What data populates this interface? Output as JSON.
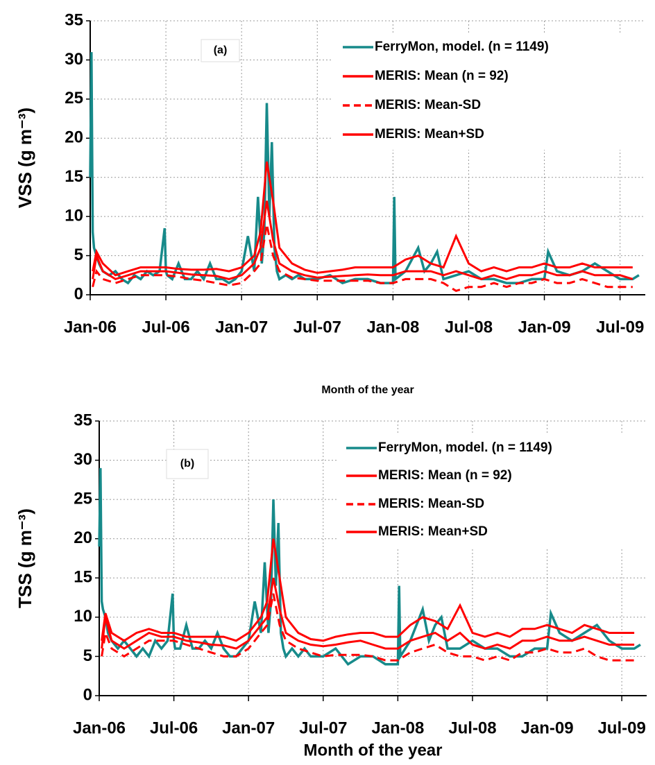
{
  "chart_data": [
    {
      "type": "line",
      "panel_label": "(a)",
      "ylabel": "VSS (g m⁻³)",
      "xlabel": "Month of the year",
      "xlim": [
        0,
        44
      ],
      "ylim": [
        0,
        35
      ],
      "yticks": [
        0,
        5,
        10,
        15,
        20,
        25,
        30,
        35
      ],
      "xticks": [
        {
          "value": 0,
          "label": "Jan-06"
        },
        {
          "value": 6,
          "label": "Jul-06"
        },
        {
          "value": 12,
          "label": "Jan-07"
        },
        {
          "value": 18,
          "label": "Jul-07"
        },
        {
          "value": 24,
          "label": "Jan-08"
        },
        {
          "value": 30,
          "label": "Jul-08"
        },
        {
          "value": 36,
          "label": "Jan-09"
        },
        {
          "value": 42,
          "label": "Jul-09"
        }
      ],
      "grid": true,
      "legend": "upper right",
      "series": [
        {
          "name": "FerryMon, model. (n = 1149)",
          "color": "#178a8a",
          "linestyle": "solid",
          "x": [
            0,
            0.1,
            0.2,
            0.3,
            0.5,
            0.7,
            1,
            1.5,
            2,
            2.5,
            3,
            3.5,
            4,
            4.5,
            5,
            5.5,
            5.9,
            6,
            6.1,
            6.5,
            7,
            7.5,
            8,
            8.5,
            9,
            9.5,
            10,
            10.5,
            11,
            11.5,
            12,
            12.5,
            13,
            13.3,
            13.6,
            13.8,
            14,
            14.2,
            14.4,
            14.6,
            14.8,
            15,
            15.5,
            16,
            16.5,
            17,
            18,
            19,
            20,
            21,
            22,
            23,
            24,
            24.1,
            24.2,
            25,
            26,
            26.5,
            27,
            27.5,
            28,
            29,
            30,
            31,
            32,
            33,
            34,
            35,
            36,
            36.3,
            37,
            38,
            39,
            40,
            41,
            42,
            43,
            43.5
          ],
          "values": [
            15,
            31,
            8,
            6,
            5,
            4,
            3,
            2.5,
            3,
            2,
            1.5,
            2.5,
            2,
            3,
            2.5,
            3,
            8.5,
            3,
            2.5,
            2,
            4,
            2,
            2,
            3,
            2,
            4,
            2,
            2,
            1.5,
            2,
            3,
            7.5,
            3,
            12.5,
            4,
            8,
            24.5,
            10,
            19.5,
            6,
            3,
            2,
            2.5,
            2,
            2.5,
            2,
            2,
            2.5,
            1.5,
            2,
            2,
            1.5,
            1.5,
            12.5,
            2,
            3,
            6,
            3,
            4,
            5.5,
            2,
            2.5,
            3,
            2,
            2,
            1.5,
            1.5,
            2,
            2,
            5.5,
            3,
            2.5,
            3,
            4,
            3,
            2,
            2,
            2.5
          ]
        },
        {
          "name": "MERIS: Mean (n = 92)",
          "color": "#ff0000",
          "linestyle": "solid",
          "x": [
            0.2,
            0.5,
            1,
            2,
            3,
            4,
            5,
            6,
            7,
            8,
            9,
            10,
            11,
            12,
            13,
            13.5,
            14,
            14.5,
            15,
            16,
            17,
            18,
            19,
            20,
            21,
            22,
            23,
            24,
            25,
            26,
            27,
            28,
            29,
            30,
            31,
            32,
            33,
            34,
            35,
            36,
            37,
            38,
            39,
            40,
            41,
            42,
            43
          ],
          "values": [
            2,
            5,
            3,
            2,
            2.5,
            3,
            3,
            3,
            2.8,
            2.6,
            2.5,
            2.4,
            2,
            2.5,
            4,
            6,
            12,
            7,
            4,
            3,
            2.5,
            2.2,
            2.3,
            2.4,
            2.5,
            2.6,
            2.5,
            2.5,
            3,
            3,
            3,
            2.5,
            3,
            2.5,
            2,
            2.5,
            2,
            2.5,
            2.5,
            3,
            2.5,
            2.5,
            3,
            2.5,
            2.5,
            2.5,
            2
          ]
        },
        {
          "name": "MERIS: Mean-SD",
          "color": "#ff0000",
          "linestyle": "dashed",
          "x": [
            0.2,
            0.5,
            1,
            2,
            3,
            4,
            5,
            6,
            7,
            8,
            9,
            10,
            11,
            12,
            13,
            13.5,
            14,
            14.5,
            15,
            16,
            17,
            18,
            19,
            20,
            21,
            22,
            23,
            24,
            25,
            26,
            27,
            28,
            29,
            30,
            31,
            32,
            33,
            34,
            35,
            36,
            37,
            38,
            39,
            40,
            41,
            42,
            43
          ],
          "values": [
            1,
            3,
            2,
            1.5,
            2,
            2.5,
            2.5,
            2.5,
            2.3,
            2,
            1.8,
            1.5,
            1.2,
            1.5,
            3,
            4,
            9,
            5,
            3,
            2.2,
            2,
            1.8,
            1.8,
            1.8,
            1.8,
            1.8,
            1.5,
            1.5,
            2,
            2,
            2,
            1.5,
            0.5,
            1,
            1,
            1.5,
            1,
            1.5,
            1.5,
            2,
            1.5,
            1.5,
            2,
            1.5,
            1,
            1,
            1
          ]
        },
        {
          "name": "MERIS: Mean+SD",
          "color": "#ff0000",
          "linestyle": "solid",
          "x": [
            0.2,
            0.5,
            1,
            2,
            3,
            4,
            5,
            6,
            7,
            8,
            9,
            10,
            11,
            12,
            13,
            13.5,
            14,
            14.5,
            15,
            16,
            17,
            18,
            19,
            20,
            21,
            22,
            23,
            24,
            25,
            26,
            27,
            28,
            29,
            30,
            31,
            32,
            33,
            34,
            35,
            36,
            37,
            38,
            39,
            40,
            41,
            42,
            43
          ],
          "values": [
            3,
            5.5,
            4,
            2.5,
            3,
            3.5,
            3.5,
            3.5,
            3.3,
            3.2,
            3.2,
            3.3,
            3,
            3.5,
            5,
            8,
            17,
            12,
            6,
            4,
            3.2,
            2.8,
            3,
            3.2,
            3.5,
            3.5,
            3.5,
            3.5,
            4.5,
            5,
            4,
            3.5,
            7.5,
            4,
            3,
            3.5,
            3,
            3.5,
            3.5,
            4,
            3.5,
            3.5,
            4,
            3.5,
            3.5,
            3.5,
            3.5
          ]
        }
      ]
    },
    {
      "type": "line",
      "panel_label": "(b)",
      "ylabel": "TSS (g m⁻³)",
      "xlabel": "Month of the year",
      "xlim": [
        0,
        44
      ],
      "ylim": [
        0,
        35
      ],
      "yticks": [
        0,
        5,
        10,
        15,
        20,
        25,
        30,
        35
      ],
      "xticks": [
        {
          "value": 0,
          "label": "Jan-06"
        },
        {
          "value": 6,
          "label": "Jul-06"
        },
        {
          "value": 12,
          "label": "Jan-07"
        },
        {
          "value": 18,
          "label": "Jul-07"
        },
        {
          "value": 24,
          "label": "Jan-08"
        },
        {
          "value": 30,
          "label": "Jul-08"
        },
        {
          "value": 36,
          "label": "Jan-09"
        },
        {
          "value": 42,
          "label": "Jul-09"
        }
      ],
      "grid": true,
      "legend": "upper right",
      "series": [
        {
          "name": "FerryMon, model. (n = 1149)",
          "color": "#178a8a",
          "linestyle": "solid",
          "x": [
            0,
            0.1,
            0.2,
            0.3,
            0.5,
            0.7,
            1,
            1.5,
            2,
            2.5,
            3,
            3.5,
            4,
            4.5,
            5,
            5.5,
            5.9,
            6,
            6.1,
            6.5,
            7,
            7.5,
            8,
            8.5,
            9,
            9.5,
            10,
            10.5,
            11,
            11.5,
            12,
            12.5,
            13,
            13.3,
            13.6,
            13.8,
            14,
            14.2,
            14.4,
            14.6,
            14.8,
            15,
            15.5,
            16,
            16.5,
            17,
            18,
            19,
            20,
            21,
            22,
            23,
            24,
            24.1,
            24.2,
            25,
            26,
            26.5,
            27,
            27.5,
            28,
            29,
            30,
            31,
            32,
            33,
            34,
            35,
            36,
            36.3,
            37,
            38,
            39,
            40,
            41,
            42,
            43,
            43.5
          ],
          "values": [
            19,
            29,
            12,
            11,
            10,
            8,
            7,
            6,
            7,
            6,
            5,
            6,
            5,
            7,
            6,
            7,
            13,
            7,
            6,
            6,
            9,
            6,
            6,
            7,
            6,
            8,
            6,
            5,
            5,
            6,
            7,
            12,
            8,
            17,
            8,
            12,
            25,
            14,
            22,
            8,
            6,
            5,
            6,
            5,
            6,
            5,
            5,
            6,
            4,
            5,
            5,
            4,
            4,
            14,
            5,
            7,
            11,
            7,
            9,
            10,
            6,
            6,
            7,
            6,
            6,
            5,
            5,
            6,
            6,
            10.5,
            8,
            7,
            8,
            9,
            7,
            6,
            6,
            6.5
          ]
        },
        {
          "name": "MERIS: Mean (n = 92)",
          "color": "#ff0000",
          "linestyle": "solid",
          "x": [
            0.2,
            0.5,
            1,
            2,
            3,
            4,
            5,
            6,
            7,
            8,
            9,
            10,
            11,
            12,
            13,
            13.5,
            14,
            14.5,
            15,
            16,
            17,
            18,
            19,
            20,
            21,
            22,
            23,
            24,
            25,
            26,
            27,
            28,
            29,
            30,
            31,
            32,
            33,
            34,
            35,
            36,
            37,
            38,
            39,
            40,
            41,
            42,
            43
          ],
          "values": [
            6,
            10,
            7,
            6,
            7,
            8,
            7.5,
            7.5,
            7,
            6.8,
            6.5,
            6.4,
            6,
            7,
            9,
            10,
            15,
            11,
            8,
            7,
            6.5,
            6.3,
            6.5,
            6.8,
            7,
            6.5,
            6,
            6,
            7,
            7.5,
            8,
            7,
            8,
            6.5,
            6,
            6.5,
            6,
            7,
            7,
            7.5,
            7,
            7,
            7.5,
            7,
            6.5,
            6.5,
            6.5
          ]
        },
        {
          "name": "MERIS: Mean-SD",
          "color": "#ff0000",
          "linestyle": "dashed",
          "x": [
            0.2,
            0.5,
            1,
            2,
            3,
            4,
            5,
            6,
            7,
            8,
            9,
            10,
            11,
            12,
            13,
            13.5,
            14,
            14.5,
            15,
            16,
            17,
            18,
            19,
            20,
            21,
            22,
            23,
            24,
            25,
            26,
            27,
            28,
            29,
            30,
            31,
            32,
            33,
            34,
            35,
            36,
            37,
            38,
            39,
            40,
            41,
            42,
            43
          ],
          "values": [
            5,
            8,
            6,
            5,
            6,
            7,
            7,
            7,
            6.5,
            6,
            5.5,
            5,
            5,
            6,
            8,
            9,
            13,
            9,
            7,
            6,
            5.5,
            5,
            5.2,
            5.2,
            5.2,
            5,
            4.5,
            4.5,
            5.5,
            6,
            6.5,
            5.5,
            5,
            5,
            4.5,
            5,
            4.5,
            5.5,
            5.5,
            6,
            5.5,
            5.5,
            6,
            5,
            4.5,
            4.5,
            4.5
          ]
        },
        {
          "name": "MERIS: Mean+SD",
          "color": "#ff0000",
          "linestyle": "solid",
          "x": [
            0.2,
            0.5,
            1,
            2,
            3,
            4,
            5,
            6,
            7,
            8,
            9,
            10,
            11,
            12,
            13,
            13.5,
            14,
            14.5,
            15,
            16,
            17,
            18,
            19,
            20,
            21,
            22,
            23,
            24,
            25,
            26,
            27,
            28,
            29,
            30,
            31,
            32,
            33,
            34,
            35,
            36,
            37,
            38,
            39,
            40,
            41,
            42,
            43
          ],
          "values": [
            7,
            10.5,
            8,
            7,
            8,
            8.5,
            8,
            8,
            7.5,
            7.5,
            7.5,
            7.5,
            7,
            8,
            10,
            12,
            20,
            15,
            10,
            8,
            7.2,
            7,
            7.5,
            7.8,
            8,
            8,
            7.5,
            7.5,
            9,
            10,
            9.5,
            8.5,
            11.5,
            8,
            7.5,
            8,
            7.5,
            8.5,
            8.5,
            9,
            8.5,
            8,
            9,
            8.5,
            8,
            8,
            8
          ]
        }
      ]
    }
  ]
}
